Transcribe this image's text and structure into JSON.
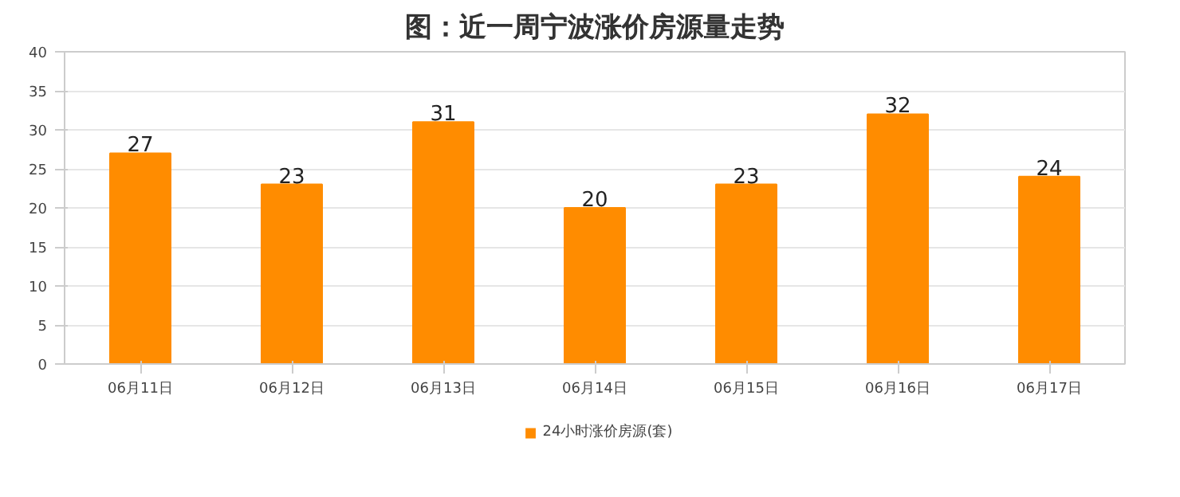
{
  "chart_data": {
    "type": "bar",
    "title": "图：近一周宁波涨价房源量走势",
    "categories": [
      "06月11日",
      "06月12日",
      "06月13日",
      "06月14日",
      "06月15日",
      "06月16日",
      "06月17日"
    ],
    "series": [
      {
        "name": "24小时涨价房源(套)",
        "color": "#ff8c00",
        "values": [
          27,
          23,
          31,
          20,
          23,
          32,
          24
        ]
      }
    ],
    "ylim": [
      0,
      40
    ],
    "yticks": [
      0,
      5,
      10,
      15,
      20,
      25,
      30,
      35,
      40
    ],
    "grid": "y",
    "legend": "bottom",
    "data_labels": true
  }
}
